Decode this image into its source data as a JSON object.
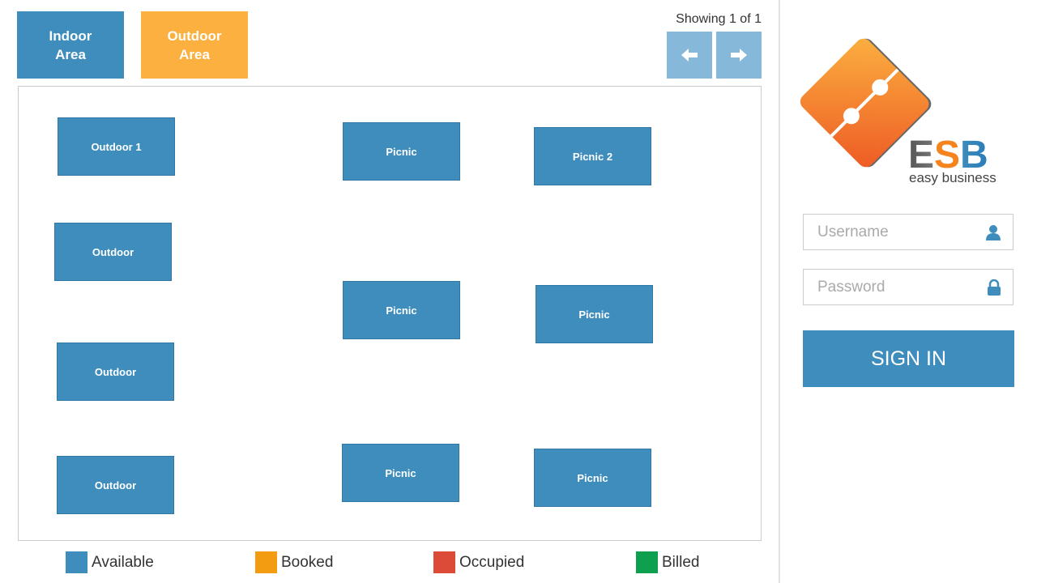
{
  "tabs": [
    {
      "label": "Indoor Area"
    },
    {
      "label": "Outdoor Area"
    }
  ],
  "pager": {
    "text": "Showing 1 of 1"
  },
  "tables": [
    {
      "label": "Outdoor 1"
    },
    {
      "label": "Outdoor"
    },
    {
      "label": "Outdoor"
    },
    {
      "label": "Outdoor"
    },
    {
      "label": "Picnic"
    },
    {
      "label": "Picnic 2"
    },
    {
      "label": "Picnic"
    },
    {
      "label": "Picnic"
    },
    {
      "label": "Picnic"
    },
    {
      "label": "Picnic"
    }
  ],
  "legend": [
    {
      "label": "Available",
      "color": "#3e8dbd"
    },
    {
      "label": "Booked",
      "color": "#f39c12"
    },
    {
      "label": "Occupied",
      "color": "#dc4a38"
    },
    {
      "label": "Billed",
      "color": "#0fa04f"
    }
  ],
  "login": {
    "logo": "ESB",
    "tagline": "easy business",
    "username": "Username",
    "password": "Password",
    "button": "SIGN IN"
  }
}
